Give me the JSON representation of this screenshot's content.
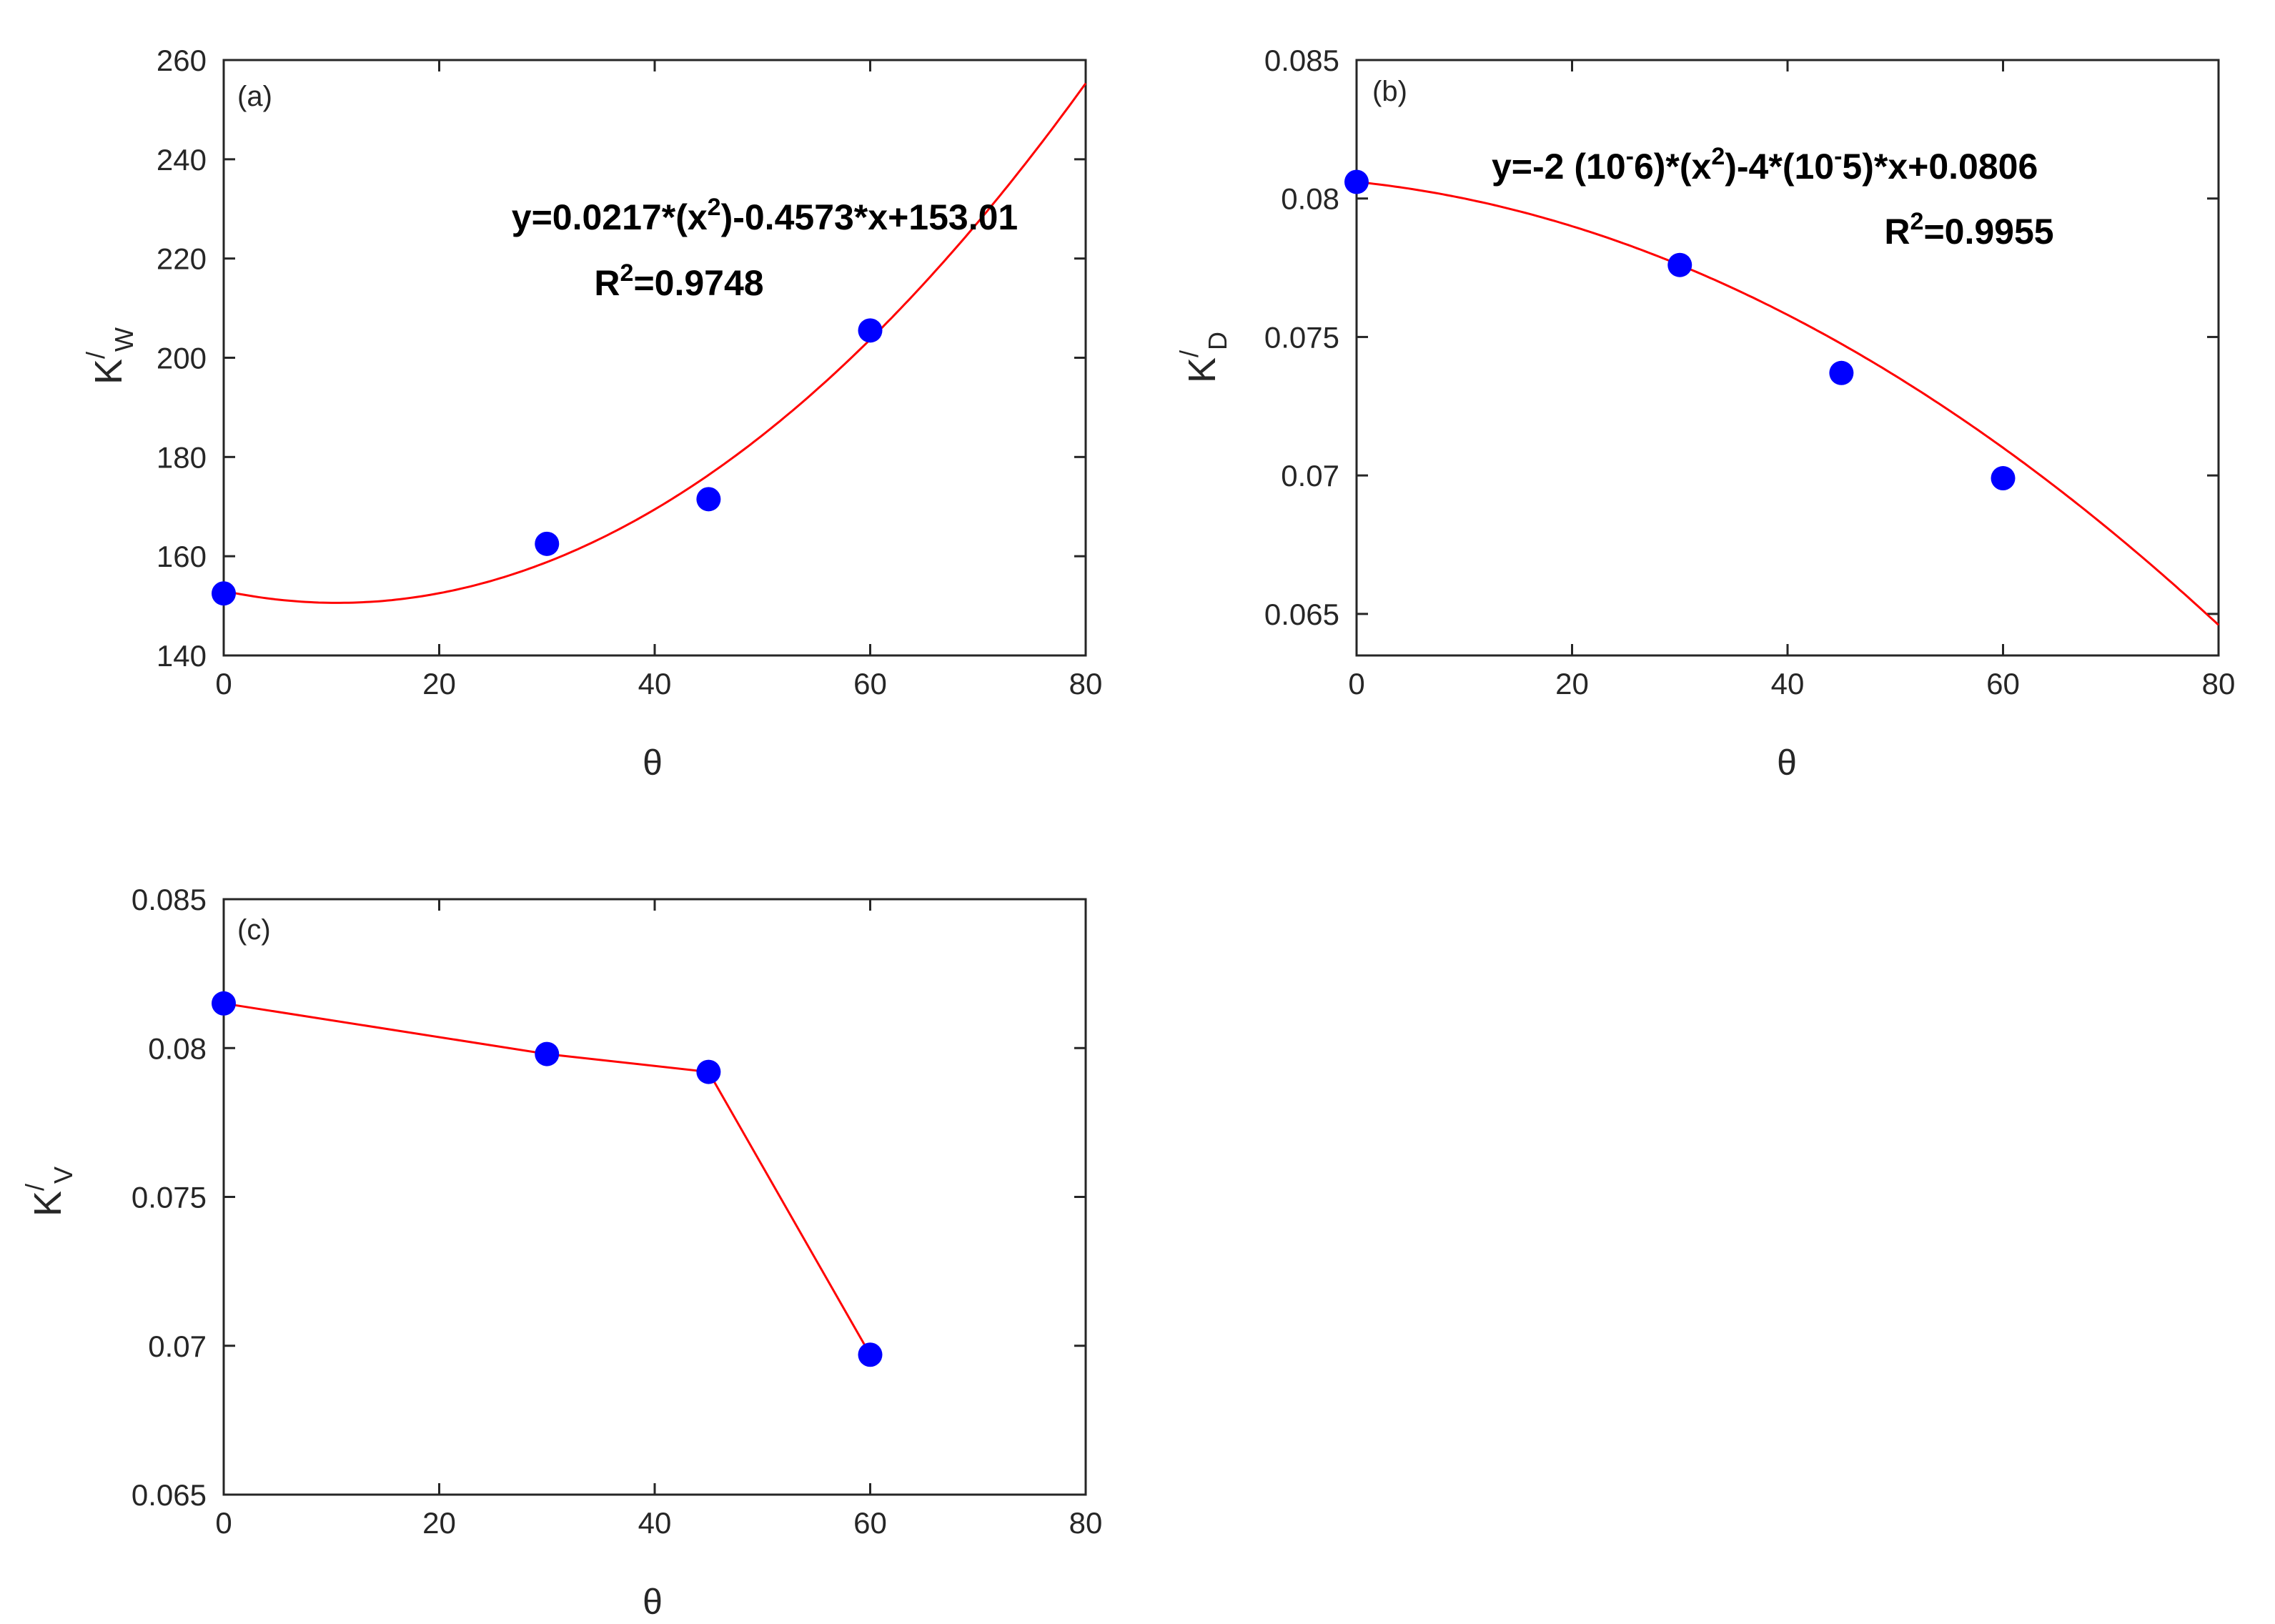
{
  "figure": {
    "colors": {
      "marker": "#0000ff",
      "line": "#ff0000",
      "axis": "#262626"
    }
  },
  "chart_data": [
    {
      "type": "scatter",
      "panel_label": "(a)",
      "xlabel": "θ",
      "ylabel": {
        "base": "K",
        "prime": "/",
        "sub": "W"
      },
      "xlim": [
        0,
        80
      ],
      "ylim": [
        140,
        260
      ],
      "xticks": [
        0,
        20,
        40,
        60,
        80
      ],
      "yticks": [
        140,
        160,
        180,
        200,
        220,
        240,
        260
      ],
      "grid": false,
      "points": {
        "x": [
          0,
          30,
          45,
          60
        ],
        "y": [
          152.5,
          162.5,
          171.5,
          205.5
        ]
      },
      "fit": {
        "kind": "quadratic",
        "a": 0.0217,
        "b": -0.4573,
        "c": 153.01
      },
      "annotation": {
        "equation": {
          "pre": "y=0.0217*(x",
          "sup": "2",
          "post": ")-0.4573*x+153.01"
        },
        "r2": {
          "pre": "R",
          "sup": "2",
          "post": "=0.9748"
        }
      }
    },
    {
      "type": "scatter",
      "panel_label": "(b)",
      "xlabel": "θ",
      "ylabel": {
        "base": "K",
        "prime": "/",
        "sub": "D"
      },
      "xlim": [
        0,
        80
      ],
      "ylim": [
        0.0635,
        0.085
      ],
      "xticks": [
        0,
        20,
        40,
        60,
        80
      ],
      "yticks": [
        0.065,
        0.07,
        0.075,
        0.08,
        0.085
      ],
      "ytick_labels": [
        "0.065",
        "0.07",
        "0.075",
        "0.08",
        "0.085"
      ],
      "grid": false,
      "points": {
        "x": [
          0,
          30,
          45,
          60
        ],
        "y": [
          0.0806,
          0.0776,
          0.0737,
          0.0699
        ]
      },
      "fit": {
        "kind": "quadratic",
        "a": -2e-06,
        "b": -4e-05,
        "c": 0.0806
      },
      "annotation": {
        "equation": {
          "t1": "y=-2 (10",
          "s1": "-",
          "t2": "6)*(x",
          "s2": "2",
          "t3": ")-4*(10",
          "s3": "-",
          "t4": "5)*x+0.0806"
        },
        "r2": {
          "pre": "R",
          "sup": "2",
          "post": "=0.9955"
        }
      }
    },
    {
      "type": "line",
      "panel_label": "(c)",
      "xlabel": "θ",
      "ylabel": {
        "base": "K",
        "prime": "/",
        "sub": "V"
      },
      "xlim": [
        0,
        80
      ],
      "ylim": [
        0.065,
        0.085
      ],
      "xticks": [
        0,
        20,
        40,
        60,
        80
      ],
      "yticks": [
        0.065,
        0.07,
        0.075,
        0.08,
        0.085
      ],
      "ytick_labels": [
        "0.065",
        "0.07",
        "0.075",
        "0.08",
        "0.085"
      ],
      "grid": false,
      "points": {
        "x": [
          0,
          30,
          45,
          60
        ],
        "y": [
          0.0815,
          0.0798,
          0.0792,
          0.0697
        ]
      }
    }
  ]
}
